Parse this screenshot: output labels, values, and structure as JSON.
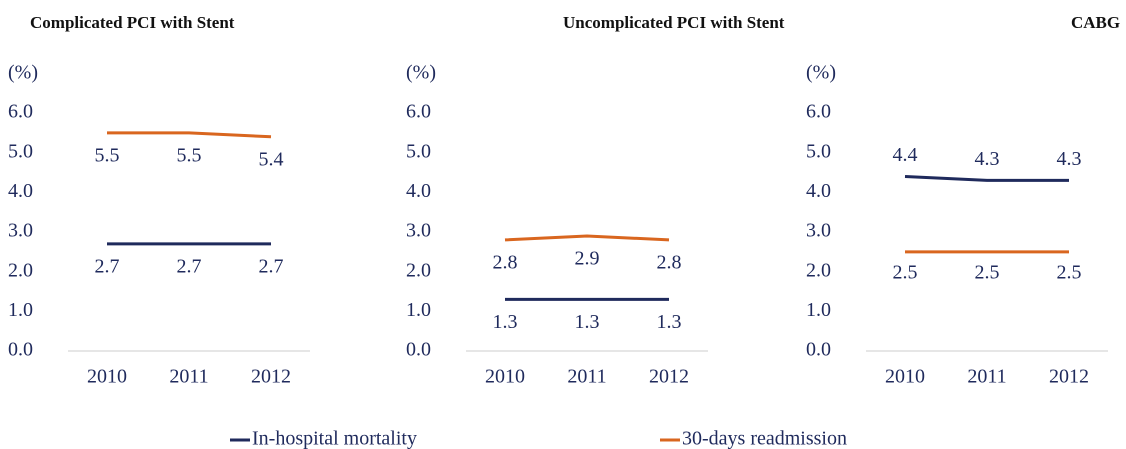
{
  "chart_data": [
    {
      "type": "line",
      "title": "Complicated PCI with Stent",
      "y_label": "(%)",
      "categories": [
        "2010",
        "2011",
        "2012"
      ],
      "ylim": [
        0,
        6
      ],
      "yticks": [
        {
          "value": 0,
          "label": "0.0"
        },
        {
          "value": 1,
          "label": "1.0"
        },
        {
          "value": 2,
          "label": "2.0"
        },
        {
          "value": 3,
          "label": "3.0"
        },
        {
          "value": 4,
          "label": "4.0"
        },
        {
          "value": 5,
          "label": "5.0"
        },
        {
          "value": 6,
          "label": "6.0"
        }
      ],
      "series": [
        {
          "name": "In-hospital mortality",
          "color": "#1f2a5c",
          "values": [
            2.7,
            2.7,
            2.7
          ]
        },
        {
          "name": "30-days readmission",
          "color": "#d9661f",
          "values": [
            5.5,
            5.5,
            5.4
          ]
        }
      ]
    },
    {
      "type": "line",
      "title": "Uncomplicated PCI with Stent",
      "y_label": "(%)",
      "categories": [
        "2010",
        "2011",
        "2012"
      ],
      "ylim": [
        0,
        6
      ],
      "yticks": [
        {
          "value": 0,
          "label": "0.0"
        },
        {
          "value": 1,
          "label": "1.0"
        },
        {
          "value": 2,
          "label": "2.0"
        },
        {
          "value": 3,
          "label": "3.0"
        },
        {
          "value": 4,
          "label": "4.0"
        },
        {
          "value": 5,
          "label": "5.0"
        },
        {
          "value": 6,
          "label": "6.0"
        }
      ],
      "series": [
        {
          "color": "#1f2a5c",
          "values": [
            1.3,
            1.3,
            1.3
          ]
        },
        {
          "color": "#d9661f",
          "values": [
            2.8,
            2.9,
            2.8
          ]
        }
      ]
    },
    {
      "type": "line",
      "title": "CABG",
      "y_label": "(%)",
      "categories": [
        "2010",
        "2011",
        "2012"
      ],
      "ylim": [
        0,
        6
      ],
      "yticks": [
        {
          "value": 0,
          "label": "0.0"
        },
        {
          "value": 1,
          "label": "1.0"
        },
        {
          "value": 2,
          "label": "2.0"
        },
        {
          "value": 3,
          "label": "3.0"
        },
        {
          "value": 4,
          "label": "4.0"
        },
        {
          "value": 5,
          "label": "5.0"
        },
        {
          "value": 6,
          "label": "6.0"
        }
      ],
      "series": [
        {
          "color": "#1f2a5c",
          "values": [
            4.4,
            4.3,
            4.3
          ]
        },
        {
          "color": "#d9661f",
          "values": [
            2.5,
            2.5,
            2.5
          ]
        }
      ]
    }
  ]
}
